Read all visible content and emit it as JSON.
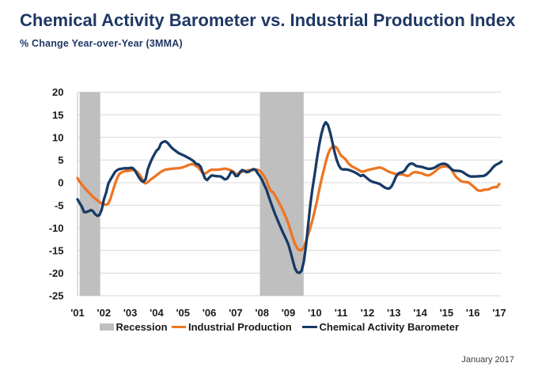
{
  "header": {
    "title": "Chemical Activity Barometer vs. Industrial Production Index",
    "subtitle": "% Change Year-over-Year (3MMA)"
  },
  "footer": {
    "date_label": "January 2017"
  },
  "legend": {
    "recession_label": "Recession",
    "industrial_production_label": "Industrial Production",
    "cab_label": "Chemical Activity Barometer"
  },
  "colors": {
    "title_navy": "#1F3864",
    "cab_line": "#173A66",
    "ip_line": "#EE7523",
    "recession_band": "#BFBFBF",
    "gridline": "#D9D9D9",
    "axis_line": "#BFBFBF",
    "tick_label": "#1A1A1A",
    "footer_text": "#3C3C3C"
  },
  "chart_data": {
    "type": "line",
    "title": "Chemical Activity Barometer vs. Industrial Production Index",
    "subtitle": "% Change Year-over-Year (3MMA)",
    "xlabel": "",
    "ylabel": "% Change Year-over-Year (3MMA)",
    "ylim": [
      -25,
      20
    ],
    "ytick_step": 5,
    "yticks": [
      20,
      15,
      10,
      5,
      0,
      -5,
      -10,
      -15,
      -20,
      -25
    ],
    "xtick_years": [
      2001,
      2002,
      2003,
      2004,
      2005,
      2006,
      2007,
      2008,
      2009,
      2010,
      2011,
      2012,
      2013,
      2014,
      2015,
      2016,
      2017
    ],
    "xtick_labels": [
      "'01",
      "'02",
      "'03",
      "'04",
      "'05",
      "'06",
      "'07",
      "'08",
      "'09",
      "'10",
      "'11",
      "'12",
      "'13",
      "'14",
      "'15",
      "'16",
      "'17"
    ],
    "xlim": [
      2001.0,
      2017.1
    ],
    "grid": true,
    "legend_position": "bottom",
    "recession_bands": [
      [
        2001.08,
        2001.86
      ],
      [
        2007.92,
        2009.58
      ]
    ],
    "series": [
      {
        "name": "Industrial Production",
        "color": "#EE7523",
        "x": [
          2001.0,
          2001.083,
          2001.167,
          2001.25,
          2001.333,
          2001.417,
          2001.5,
          2001.583,
          2001.667,
          2001.75,
          2001.833,
          2001.917,
          2002.0,
          2002.083,
          2002.167,
          2002.25,
          2002.333,
          2002.417,
          2002.5,
          2002.583,
          2002.667,
          2002.75,
          2002.833,
          2002.917,
          2003.0,
          2003.083,
          2003.167,
          2003.25,
          2003.333,
          2003.417,
          2003.5,
          2003.583,
          2003.667,
          2003.75,
          2003.833,
          2003.917,
          2004.0,
          2004.083,
          2004.167,
          2004.25,
          2004.333,
          2004.417,
          2004.5,
          2004.583,
          2004.667,
          2004.75,
          2004.833,
          2004.917,
          2005.0,
          2005.083,
          2005.167,
          2005.25,
          2005.333,
          2005.417,
          2005.5,
          2005.583,
          2005.667,
          2005.75,
          2005.833,
          2005.917,
          2006.0,
          2006.083,
          2006.167,
          2006.25,
          2006.333,
          2006.417,
          2006.5,
          2006.583,
          2006.667,
          2006.75,
          2006.833,
          2006.917,
          2007.0,
          2007.083,
          2007.167,
          2007.25,
          2007.333,
          2007.417,
          2007.5,
          2007.583,
          2007.667,
          2007.75,
          2007.833,
          2007.917,
          2008.0,
          2008.083,
          2008.167,
          2008.25,
          2008.333,
          2008.417,
          2008.5,
          2008.583,
          2008.667,
          2008.75,
          2008.833,
          2008.917,
          2009.0,
          2009.083,
          2009.167,
          2009.25,
          2009.333,
          2009.417,
          2009.5,
          2009.583,
          2009.667,
          2009.75,
          2009.833,
          2009.917,
          2010.0,
          2010.083,
          2010.167,
          2010.25,
          2010.333,
          2010.417,
          2010.5,
          2010.583,
          2010.667,
          2010.75,
          2010.833,
          2010.917,
          2011.0,
          2011.083,
          2011.167,
          2011.25,
          2011.333,
          2011.417,
          2011.5,
          2011.583,
          2011.667,
          2011.75,
          2011.833,
          2011.917,
          2012.0,
          2012.083,
          2012.167,
          2012.25,
          2012.333,
          2012.417,
          2012.5,
          2012.583,
          2012.667,
          2012.75,
          2012.833,
          2012.917,
          2013.0,
          2013.083,
          2013.167,
          2013.25,
          2013.333,
          2013.417,
          2013.5,
          2013.583,
          2013.667,
          2013.75,
          2013.833,
          2013.917,
          2014.0,
          2014.083,
          2014.167,
          2014.25,
          2014.333,
          2014.417,
          2014.5,
          2014.583,
          2014.667,
          2014.75,
          2014.833,
          2014.917,
          2015.0,
          2015.083,
          2015.167,
          2015.25,
          2015.333,
          2015.417,
          2015.5,
          2015.583,
          2015.667,
          2015.75,
          2015.833,
          2015.917,
          2016.0,
          2016.083,
          2016.167,
          2016.25,
          2016.333,
          2016.417,
          2016.5,
          2016.583,
          2016.667,
          2016.75,
          2016.833,
          2016.917,
          2017.0
        ],
        "values": [
          1.0,
          0.16,
          -0.45,
          -1.01,
          -1.59,
          -2.12,
          -2.62,
          -3.11,
          -3.52,
          -3.9,
          -4.28,
          -4.6,
          -4.83,
          -4.89,
          -4.64,
          -3.56,
          -1.94,
          -0.4,
          0.97,
          1.88,
          2.27,
          2.46,
          2.56,
          2.6,
          2.68,
          2.78,
          2.73,
          2.42,
          1.91,
          1.23,
          0.19,
          -0.17,
          0.11,
          0.56,
          0.94,
          1.27,
          1.65,
          2.03,
          2.38,
          2.66,
          2.88,
          2.95,
          3.0,
          3.09,
          3.12,
          3.15,
          3.19,
          3.26,
          3.39,
          3.58,
          3.78,
          3.96,
          4.09,
          3.99,
          3.7,
          3.32,
          2.72,
          2.12,
          1.99,
          2.26,
          2.65,
          2.85,
          2.85,
          2.85,
          2.87,
          2.92,
          2.99,
          3.09,
          3.0,
          2.86,
          2.68,
          2.43,
          1.93,
          1.9,
          2.14,
          2.42,
          2.52,
          2.64,
          2.75,
          2.75,
          2.78,
          2.82,
          2.85,
          2.61,
          2.1,
          1.39,
          0.53,
          -0.79,
          -1.87,
          -2.11,
          -2.9,
          -3.75,
          -4.67,
          -5.6,
          -6.66,
          -7.8,
          -9.1,
          -10.66,
          -12.2,
          -13.56,
          -14.5,
          -14.94,
          -14.91,
          -14.35,
          -13.06,
          -11.48,
          -10.04,
          -8.25,
          -6.22,
          -4.07,
          -1.65,
          0.55,
          2.54,
          4.55,
          6.25,
          7.35,
          7.92,
          8.02,
          7.72,
          6.85,
          5.94,
          5.59,
          5.18,
          4.47,
          3.93,
          3.58,
          3.32,
          3.07,
          2.79,
          2.49,
          2.43,
          2.58,
          2.75,
          2.88,
          2.98,
          3.09,
          3.19,
          3.33,
          3.31,
          3.14,
          2.87,
          2.59,
          2.37,
          2.2,
          2.01,
          1.87,
          1.8,
          1.83,
          1.82,
          1.66,
          1.49,
          1.57,
          1.98,
          2.28,
          2.33,
          2.24,
          2.16,
          2.04,
          1.78,
          1.64,
          1.61,
          1.86,
          2.18,
          2.56,
          2.99,
          3.32,
          3.51,
          3.6,
          3.55,
          3.41,
          3.06,
          2.3,
          1.45,
          0.95,
          0.55,
          0.25,
          0.17,
          0.12,
          0.02,
          -0.34,
          -0.74,
          -1.17,
          -1.64,
          -1.77,
          -1.78,
          -1.56,
          -1.55,
          -1.52,
          -1.31,
          -1.06,
          -1.0,
          -0.99,
          -0.35
        ]
      },
      {
        "name": "Chemical Activity Barometer",
        "color": "#173A66",
        "x": [
          2001.0,
          2001.083,
          2001.167,
          2001.25,
          2001.333,
          2001.417,
          2001.5,
          2001.583,
          2001.667,
          2001.75,
          2001.833,
          2001.917,
          2002.0,
          2002.083,
          2002.167,
          2002.25,
          2002.333,
          2002.417,
          2002.5,
          2002.583,
          2002.667,
          2002.75,
          2002.833,
          2002.917,
          2003.0,
          2003.083,
          2003.167,
          2003.25,
          2003.333,
          2003.417,
          2003.5,
          2003.583,
          2003.667,
          2003.75,
          2003.833,
          2003.917,
          2004.0,
          2004.083,
          2004.167,
          2004.25,
          2004.333,
          2004.417,
          2004.5,
          2004.583,
          2004.667,
          2004.75,
          2004.833,
          2004.917,
          2005.0,
          2005.083,
          2005.167,
          2005.25,
          2005.333,
          2005.417,
          2005.5,
          2005.583,
          2005.667,
          2005.75,
          2005.833,
          2005.917,
          2006.0,
          2006.083,
          2006.167,
          2006.25,
          2006.333,
          2006.417,
          2006.5,
          2006.583,
          2006.667,
          2006.75,
          2006.833,
          2006.917,
          2007.0,
          2007.083,
          2007.167,
          2007.25,
          2007.333,
          2007.417,
          2007.5,
          2007.583,
          2007.667,
          2007.75,
          2007.833,
          2007.917,
          2008.0,
          2008.083,
          2008.167,
          2008.25,
          2008.333,
          2008.417,
          2008.5,
          2008.583,
          2008.667,
          2008.75,
          2008.833,
          2008.917,
          2009.0,
          2009.083,
          2009.167,
          2009.25,
          2009.333,
          2009.417,
          2009.5,
          2009.583,
          2009.667,
          2009.75,
          2009.833,
          2009.917,
          2010.0,
          2010.083,
          2010.167,
          2010.25,
          2010.333,
          2010.417,
          2010.5,
          2010.583,
          2010.667,
          2010.75,
          2010.833,
          2010.917,
          2011.0,
          2011.083,
          2011.167,
          2011.25,
          2011.333,
          2011.417,
          2011.5,
          2011.583,
          2011.667,
          2011.75,
          2011.833,
          2011.917,
          2012.0,
          2012.083,
          2012.167,
          2012.25,
          2012.333,
          2012.417,
          2012.5,
          2012.583,
          2012.667,
          2012.75,
          2012.833,
          2012.917,
          2013.0,
          2013.083,
          2013.167,
          2013.25,
          2013.333,
          2013.417,
          2013.5,
          2013.583,
          2013.667,
          2013.75,
          2013.833,
          2013.917,
          2014.0,
          2014.083,
          2014.167,
          2014.25,
          2014.333,
          2014.417,
          2014.5,
          2014.583,
          2014.667,
          2014.75,
          2014.833,
          2014.917,
          2015.0,
          2015.083,
          2015.167,
          2015.25,
          2015.333,
          2015.417,
          2015.5,
          2015.583,
          2015.667,
          2015.75,
          2015.833,
          2015.917,
          2016.0,
          2016.083,
          2016.167,
          2016.25,
          2016.333,
          2016.417,
          2016.5,
          2016.583,
          2016.667,
          2016.75,
          2016.833,
          2016.917,
          2017.0,
          2017.083
        ],
        "values": [
          -3.7,
          -4.53,
          -5.36,
          -6.51,
          -6.51,
          -6.31,
          -6.08,
          -6.26,
          -6.97,
          -7.34,
          -7.16,
          -6.02,
          -3.75,
          -2.24,
          -0.23,
          0.68,
          1.48,
          2.32,
          2.75,
          2.97,
          3.07,
          3.16,
          3.19,
          3.16,
          3.25,
          3.26,
          2.78,
          1.95,
          1.14,
          0.47,
          0.16,
          0.74,
          2.93,
          4.23,
          5.35,
          6.28,
          7.06,
          7.53,
          8.68,
          9.0,
          9.15,
          8.79,
          8.2,
          7.65,
          7.25,
          6.91,
          6.52,
          6.3,
          6.09,
          5.86,
          5.59,
          5.33,
          5.04,
          4.66,
          4.15,
          4.04,
          3.53,
          2.27,
          0.96,
          0.57,
          1.14,
          1.58,
          1.54,
          1.44,
          1.4,
          1.39,
          1.13,
          0.72,
          0.85,
          1.5,
          2.43,
          2.19,
          1.45,
          1.51,
          2.36,
          2.78,
          2.57,
          2.3,
          2.4,
          2.74,
          2.97,
          2.87,
          2.08,
          1.44,
          0.6,
          -0.49,
          -1.55,
          -3.0,
          -4.39,
          -5.75,
          -7.0,
          -8.17,
          -9.34,
          -10.46,
          -11.5,
          -12.52,
          -13.7,
          -15.34,
          -17.21,
          -18.95,
          -19.81,
          -19.95,
          -19.49,
          -17.55,
          -14.02,
          -9.36,
          -4.92,
          -1.24,
          1.9,
          5.32,
          8.28,
          10.68,
          12.47,
          13.34,
          12.74,
          11.13,
          9.03,
          6.8,
          4.99,
          3.73,
          3.06,
          2.91,
          2.95,
          2.85,
          2.73,
          2.54,
          2.33,
          2.09,
          1.78,
          1.45,
          1.7,
          1.32,
          0.9,
          0.51,
          0.23,
          0.08,
          -0.04,
          -0.19,
          -0.43,
          -0.79,
          -1.11,
          -1.31,
          -1.28,
          -0.82,
          0.2,
          1.31,
          1.98,
          2.21,
          2.31,
          2.68,
          3.47,
          4.02,
          4.24,
          4.1,
          3.72,
          3.59,
          3.52,
          3.45,
          3.27,
          3.12,
          3.05,
          3.08,
          3.2,
          3.42,
          3.76,
          4.0,
          4.15,
          4.19,
          4.02,
          3.68,
          3.1,
          2.71,
          2.65,
          2.62,
          2.57,
          2.44,
          2.14,
          1.79,
          1.52,
          1.36,
          1.35,
          1.35,
          1.39,
          1.42,
          1.46,
          1.49,
          1.74,
          2.17,
          2.68,
          3.29,
          3.76,
          4.07,
          4.3,
          4.65
        ]
      }
    ]
  }
}
